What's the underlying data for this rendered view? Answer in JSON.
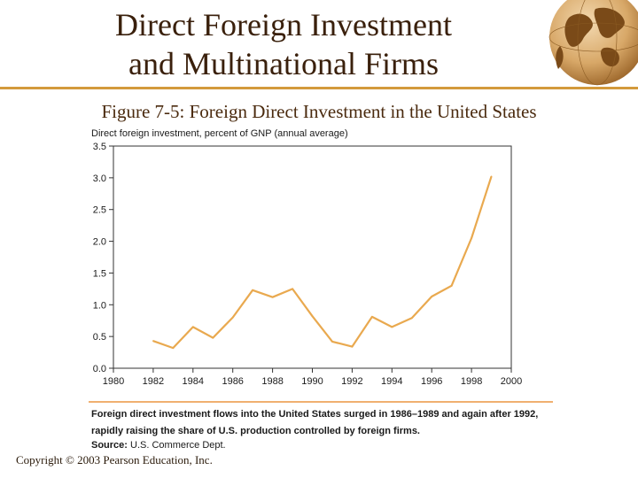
{
  "slide": {
    "title_line1": "Direct Foreign Investment",
    "title_line2": "and Multinational Firms",
    "figure_label": "Figure 7-5",
    "figure_title": ": Foreign Direct Investment in the United States",
    "note_line1": "Foreign direct investment flows into the United States surged in 1986–1989 and again after 1992,",
    "note_line2": "rapidly raising the share of U.S. production controlled by foreign firms.",
    "source_label": "Source:",
    "source_text": "U.S. Commerce Dept.",
    "copyright": "Copyright © 2003 Pearson Education, Inc.",
    "accent_color": "#d39a3c",
    "line_color": "#e9a94f",
    "logo_icon": "globe-icon"
  },
  "chart_data": {
    "type": "line",
    "title": "",
    "ylabel": "Direct foreign investment, percent of GNP (annual average)",
    "xlabel": "",
    "xlim": [
      1980,
      2000
    ],
    "ylim": [
      0,
      3.5
    ],
    "x_ticks": [
      "1980",
      "1982",
      "1984",
      "1986",
      "1988",
      "1990",
      "1992",
      "1994",
      "1996",
      "1998",
      "2000"
    ],
    "y_ticks": [
      "0.0",
      "0.5",
      "1.0",
      "1.5",
      "2.0",
      "2.5",
      "3.0",
      "3.5"
    ],
    "grid": false,
    "series": [
      {
        "x": [
          1982,
          1983,
          1984,
          1985,
          1986,
          1987,
          1988,
          1989,
          1990,
          1991,
          1992,
          1993,
          1994,
          1995,
          1996,
          1997,
          1998,
          1999
        ],
        "y": [
          0.43,
          0.32,
          0.65,
          0.48,
          0.8,
          1.23,
          1.12,
          1.25,
          0.82,
          0.42,
          0.34,
          0.81,
          0.65,
          0.79,
          1.13,
          1.3,
          2.05,
          3.02
        ]
      }
    ]
  }
}
